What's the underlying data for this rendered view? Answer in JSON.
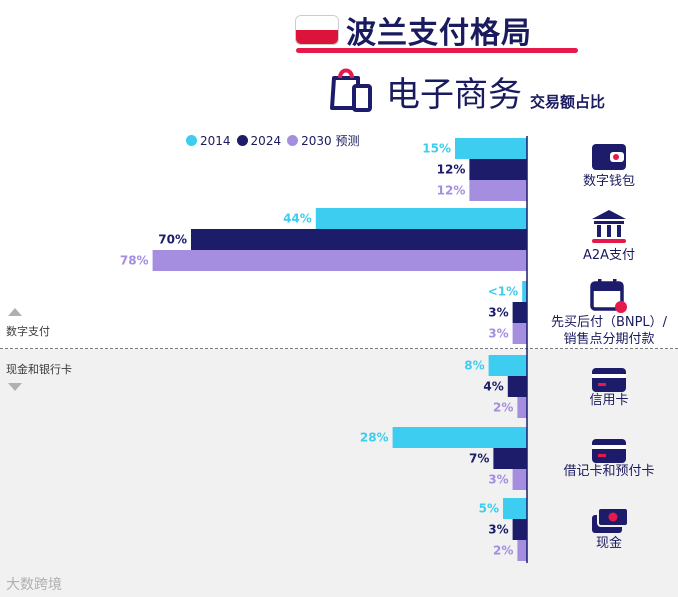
{
  "header": {
    "title": "波兰支付格局",
    "subtitle": "电子商务",
    "subtitle2": "交易额占比"
  },
  "legend": [
    {
      "label": "2014",
      "color": "#3ccdf0"
    },
    {
      "label": "2024",
      "color": "#1c1c6b"
    },
    {
      "label": "2030 预测",
      "color": "#a58ee0"
    }
  ],
  "groups": {
    "digital": "数字支付",
    "cash_cards": "现金和银行卡"
  },
  "watermark": "大数跨境",
  "chart_data": {
    "type": "bar",
    "orientation": "horizontal",
    "categories": [
      "数字钱包",
      "A2A支付",
      "先买后付（BNPL）/ 销售点分期付款",
      "信用卡",
      "借记卡和预付卡",
      "现金"
    ],
    "category_lines": [
      [
        "数字钱包"
      ],
      [
        "A2A支付"
      ],
      [
        "先买后付（BNPL）/",
        "销售点分期付款"
      ],
      [
        "信用卡"
      ],
      [
        "借记卡和预付卡"
      ],
      [
        "现金"
      ]
    ],
    "series": [
      {
        "name": "2014",
        "color": "#3ccdf0",
        "values": [
          15,
          44,
          1,
          8,
          28,
          5
        ],
        "labels": [
          "15%",
          "44%",
          "<1%",
          "8%",
          "28%",
          "5%"
        ]
      },
      {
        "name": "2024",
        "color": "#1c1c6b",
        "values": [
          12,
          70,
          3,
          4,
          7,
          3
        ],
        "labels": [
          "12%",
          "70%",
          "3%",
          "4%",
          "7%",
          "3%"
        ]
      },
      {
        "name": "2030 预测",
        "color": "#a58ee0",
        "values": [
          12,
          78,
          3,
          2,
          3,
          2
        ],
        "labels": [
          "12%",
          "78%",
          "3%",
          "2%",
          "3%",
          "2%"
        ]
      }
    ],
    "xlim": [
      0,
      100
    ],
    "icons": [
      "wallet-icon",
      "bank-icon",
      "calendar-icon",
      "credit-card-icon",
      "debit-card-icon",
      "cash-icon"
    ]
  }
}
